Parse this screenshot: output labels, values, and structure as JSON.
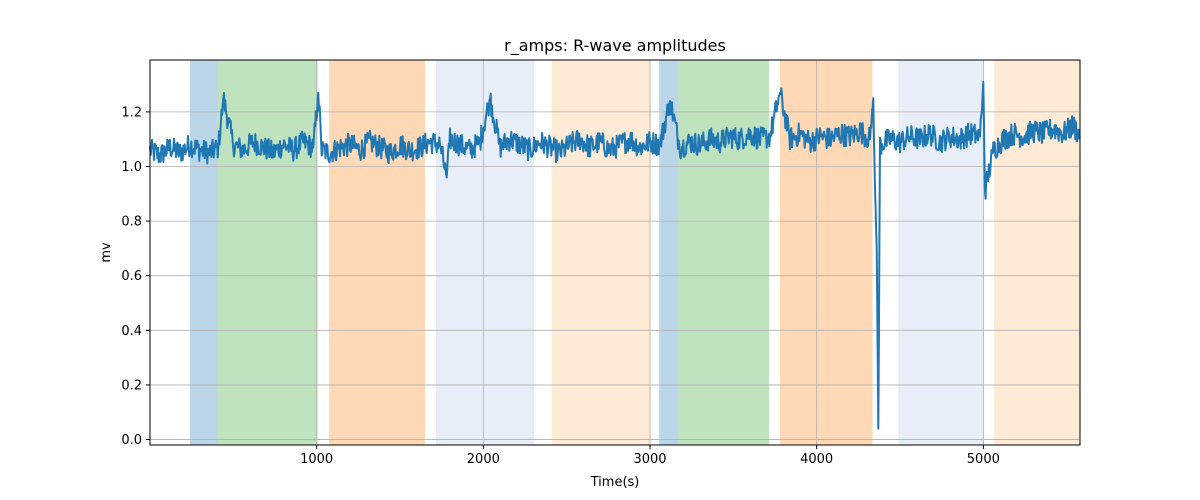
{
  "chart_data": {
    "type": "line",
    "title": "r_amps: R-wave amplitudes",
    "xlabel": "Time(s)",
    "ylabel": "mv",
    "xlim": [
      0,
      5580
    ],
    "ylim": [
      -0.02,
      1.39
    ],
    "xticks": [
      1000,
      2000,
      3000,
      4000,
      5000
    ],
    "yticks": [
      0.0,
      0.2,
      0.4,
      0.6,
      0.8,
      1.0,
      1.2
    ],
    "grid": true,
    "series_color": "#1f77b4",
    "shaded_regions": [
      {
        "start": 240,
        "end": 405,
        "color": "#1f77b4",
        "opacity": 0.3
      },
      {
        "start": 405,
        "end": 1005,
        "color": "#2ca02c",
        "opacity": 0.3
      },
      {
        "start": 1075,
        "end": 1650,
        "color": "#ff7f0e",
        "opacity": 0.3
      },
      {
        "start": 1715,
        "end": 2305,
        "color": "#aec7e8",
        "opacity": 0.3
      },
      {
        "start": 2410,
        "end": 3005,
        "color": "#ffbb78",
        "opacity": 0.3
      },
      {
        "start": 3055,
        "end": 3170,
        "color": "#1f77b4",
        "opacity": 0.3
      },
      {
        "start": 3170,
        "end": 3715,
        "color": "#2ca02c",
        "opacity": 0.3
      },
      {
        "start": 3780,
        "end": 4335,
        "color": "#ff7f0e",
        "opacity": 0.3
      },
      {
        "start": 4490,
        "end": 5005,
        "color": "#aec7e8",
        "opacity": 0.3
      },
      {
        "start": 5065,
        "end": 5580,
        "color": "#ffbb78",
        "opacity": 0.3
      }
    ],
    "series": [
      {
        "x": [
          0,
          60,
          120,
          180,
          240,
          300,
          360,
          410,
          440,
          500,
          560,
          620,
          680,
          740,
          800,
          860,
          920,
          980,
          1010,
          1030,
          1080,
          1140,
          1200,
          1260,
          1320,
          1380,
          1440,
          1500,
          1560,
          1620,
          1680,
          1740,
          1780,
          1800,
          1860,
          1920,
          1980,
          2040,
          2100,
          2160,
          2220,
          2280,
          2340,
          2400,
          2460,
          2520,
          2580,
          2640,
          2700,
          2760,
          2820,
          2880,
          2940,
          3000,
          3060,
          3120,
          3180,
          3240,
          3300,
          3360,
          3420,
          3480,
          3540,
          3600,
          3660,
          3720,
          3780,
          3840,
          3900,
          3960,
          4020,
          4080,
          4140,
          4200,
          4260,
          4320,
          4340,
          4350,
          4360,
          4370,
          4380,
          4440,
          4500,
          4560,
          4620,
          4680,
          4740,
          4800,
          4860,
          4920,
          4980,
          5000,
          5010,
          5060,
          5120,
          5180,
          5240,
          5300,
          5360,
          5420,
          5480,
          5540,
          5580
        ],
        "y": [
          1.06,
          1.04,
          1.07,
          1.05,
          1.08,
          1.06,
          1.05,
          1.07,
          1.25,
          1.08,
          1.06,
          1.09,
          1.07,
          1.05,
          1.08,
          1.06,
          1.09,
          1.07,
          1.27,
          1.06,
          1.05,
          1.07,
          1.08,
          1.06,
          1.09,
          1.07,
          1.05,
          1.08,
          1.06,
          1.07,
          1.09,
          1.08,
          0.96,
          1.1,
          1.08,
          1.06,
          1.09,
          1.25,
          1.07,
          1.1,
          1.08,
          1.06,
          1.09,
          1.07,
          1.05,
          1.08,
          1.1,
          1.07,
          1.09,
          1.06,
          1.08,
          1.1,
          1.07,
          1.09,
          1.08,
          1.24,
          1.07,
          1.09,
          1.08,
          1.1,
          1.09,
          1.11,
          1.1,
          1.12,
          1.1,
          1.11,
          1.27,
          1.1,
          1.12,
          1.09,
          1.11,
          1.1,
          1.12,
          1.11,
          1.13,
          1.1,
          1.25,
          0.92,
          0.7,
          0.04,
          1.08,
          1.1,
          1.09,
          1.11,
          1.1,
          1.12,
          1.09,
          1.11,
          1.1,
          1.12,
          1.11,
          1.31,
          0.91,
          1.06,
          1.1,
          1.12,
          1.11,
          1.13,
          1.12,
          1.14,
          1.12,
          1.15,
          1.11
        ]
      }
    ]
  }
}
